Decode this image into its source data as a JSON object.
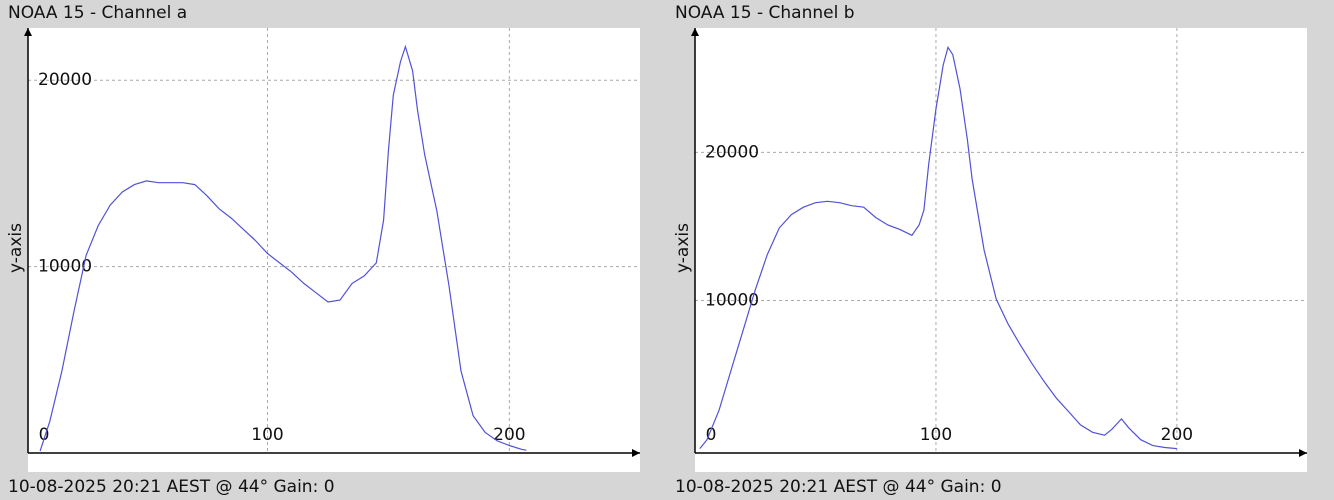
{
  "chart_data": [
    {
      "type": "line",
      "title": "NOAA 15 - Channel a",
      "ylabel": "y-axis",
      "caption": "10-08-2025 20:21 AEST @ 44° Gain: 0",
      "xlim": [
        1,
        254
      ],
      "ylim": [
        0,
        22800
      ],
      "xticks": [
        0,
        100,
        200
      ],
      "yticks": [
        10000,
        20000
      ],
      "grid": true,
      "series": [
        {
          "color": "#5252d6",
          "x": [
            6,
            10,
            15,
            20,
            25,
            30,
            35,
            40,
            45,
            50,
            55,
            60,
            65,
            70,
            75,
            80,
            85,
            90,
            95,
            100,
            105,
            110,
            115,
            120,
            125,
            130,
            135,
            140,
            145,
            148,
            150,
            152,
            155,
            157,
            160,
            162,
            165,
            170,
            175,
            180,
            185,
            190,
            195,
            200,
            205,
            207
          ],
          "values": [
            100,
            1700,
            4400,
            7600,
            10600,
            12200,
            13300,
            14000,
            14400,
            14600,
            14500,
            14500,
            14500,
            14400,
            13800,
            13100,
            12600,
            12000,
            11400,
            10700,
            10200,
            9700,
            9100,
            8600,
            8100,
            8200,
            9100,
            9500,
            10200,
            12500,
            16200,
            19200,
            21000,
            21800,
            20500,
            18400,
            16000,
            13000,
            9000,
            4400,
            2000,
            1100,
            650,
            400,
            200,
            150
          ]
        }
      ]
    },
    {
      "type": "line",
      "title": "NOAA 15 - Channel b",
      "ylabel": "y-axis",
      "caption": "10-08-2025 20:21 AEST @ 44° Gain: 0",
      "xlim": [
        0,
        254
      ],
      "ylim": [
        -300,
        28400
      ],
      "xticks": [
        0,
        100,
        200
      ],
      "yticks": [
        10000,
        20000
      ],
      "grid": true,
      "series": [
        {
          "color": "#5252d6",
          "x": [
            2,
            5,
            10,
            15,
            20,
            25,
            30,
            35,
            40,
            45,
            50,
            55,
            60,
            65,
            70,
            75,
            80,
            85,
            90,
            93,
            95,
            97,
            100,
            103,
            105,
            107,
            110,
            113,
            115,
            120,
            125,
            130,
            135,
            140,
            145,
            150,
            155,
            160,
            165,
            170,
            173,
            177,
            180,
            185,
            190,
            195,
            200
          ],
          "values": [
            0,
            600,
            2600,
            5300,
            8000,
            10700,
            13100,
            14900,
            15800,
            16300,
            16600,
            16700,
            16600,
            16400,
            16300,
            15600,
            15100,
            14800,
            14400,
            15100,
            16100,
            19200,
            22900,
            25900,
            27100,
            26600,
            24300,
            20900,
            18200,
            13400,
            10100,
            8400,
            7000,
            5700,
            4500,
            3400,
            2500,
            1600,
            1100,
            900,
            1300,
            2000,
            1400,
            600,
            200,
            70,
            0
          ]
        }
      ]
    }
  ]
}
